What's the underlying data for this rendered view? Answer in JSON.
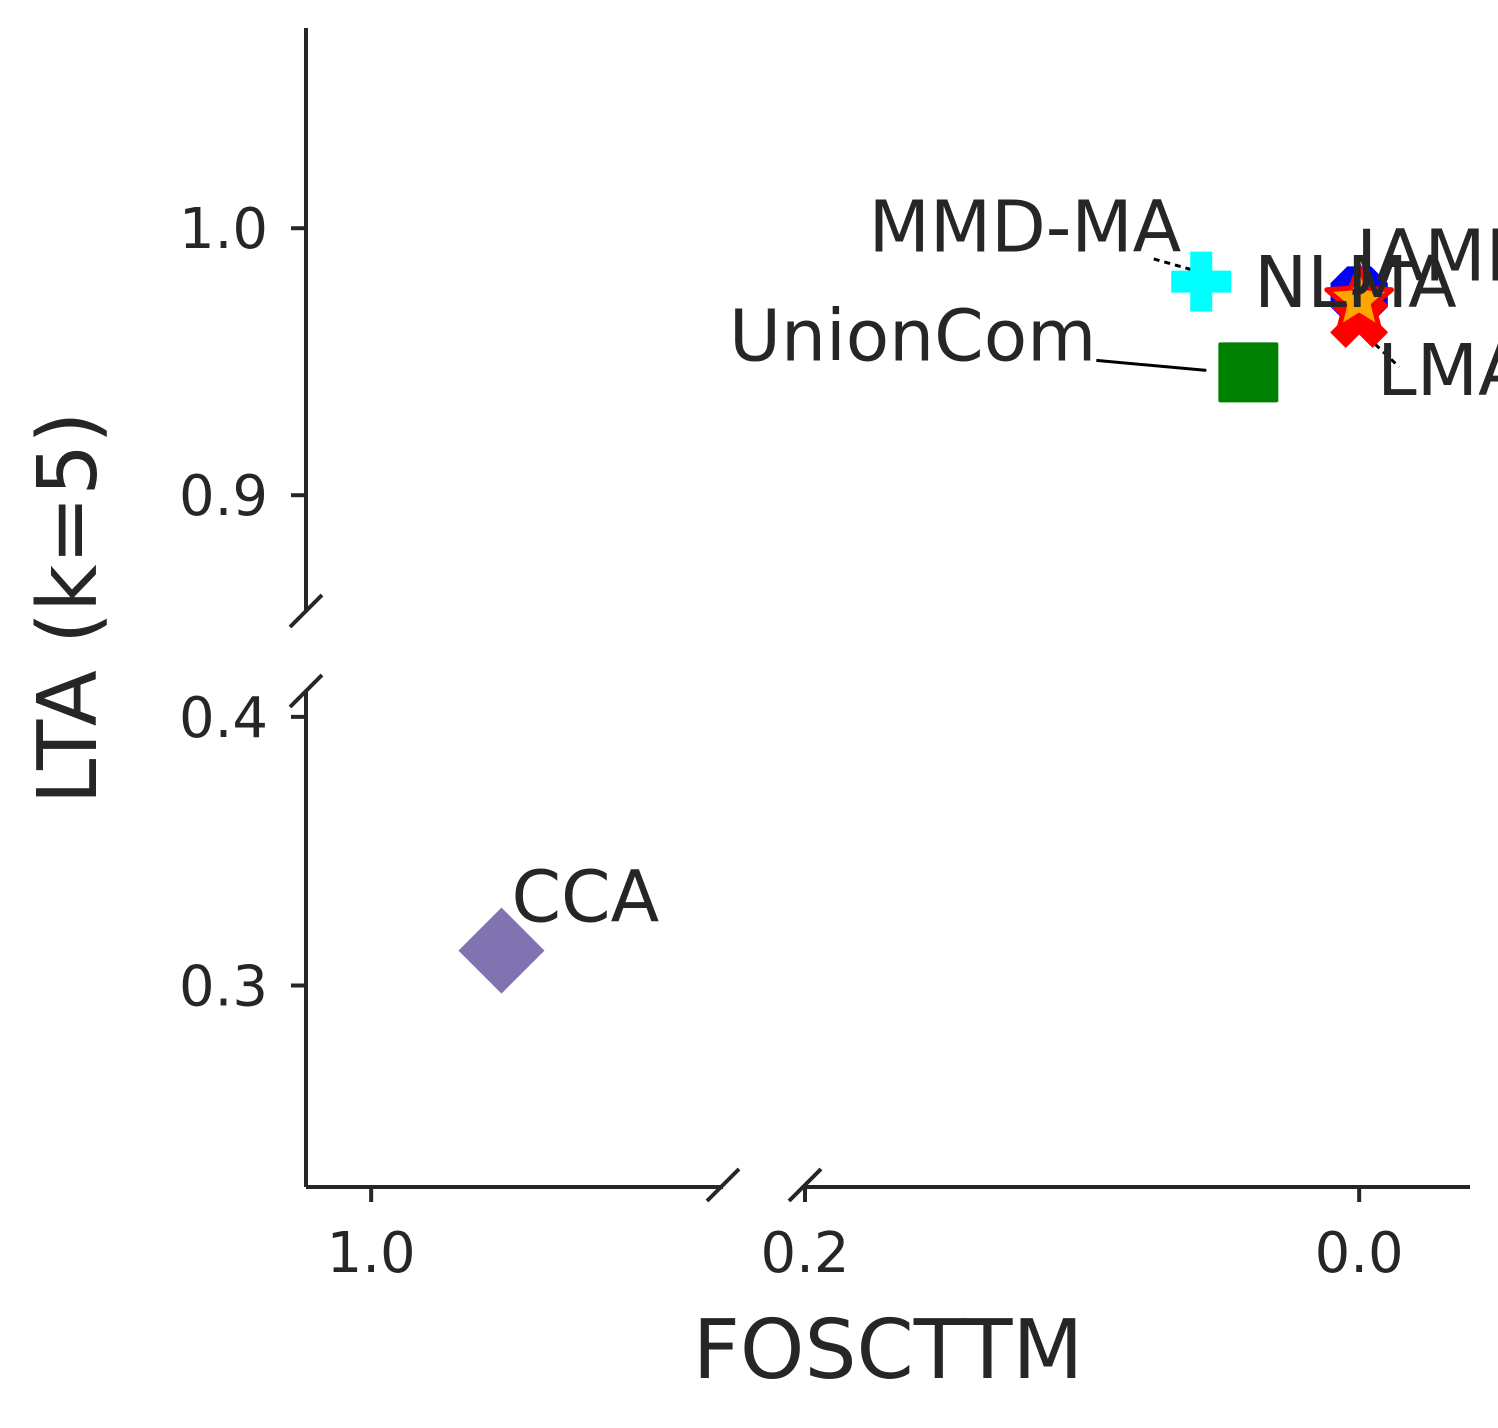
{
  "chart_data": {
    "type": "scatter",
    "xlabel": "FOSCTTM",
    "ylabel": "LTA (k=5)",
    "x_axis": {
      "inverted": true,
      "broken": true,
      "segments": [
        {
          "range": [
            1.05,
            0.73
          ],
          "ticks": [
            {
              "value": 1.0,
              "label": "1.0"
            }
          ]
        },
        {
          "range": [
            0.2,
            -0.04
          ],
          "ticks": [
            {
              "value": 0.2,
              "label": "0.2"
            },
            {
              "value": 0.0,
              "label": "0.0"
            }
          ]
        }
      ]
    },
    "y_axis": {
      "broken": true,
      "segments": [
        {
          "range": [
            0.225,
            0.41
          ],
          "ticks": [
            {
              "value": 0.3,
              "label": "0.3"
            },
            {
              "value": 0.4,
              "label": "0.4"
            }
          ]
        },
        {
          "range": [
            0.857,
            1.075
          ],
          "ticks": [
            {
              "value": 0.9,
              "label": "0.9"
            },
            {
              "value": 1.0,
              "label": "1.0"
            }
          ]
        }
      ]
    },
    "grid": false,
    "legend": "none",
    "points": [
      {
        "label": "MMD-MA",
        "x": 0.057,
        "y": 0.98,
        "marker": "plus",
        "color": "#00ffff"
      },
      {
        "label": "UnionCom",
        "x": 0.04,
        "y": 0.946,
        "marker": "square",
        "color": "#008000"
      },
      {
        "label": "NLMA",
        "x": 0.0,
        "y": 0.975,
        "marker": "octagon",
        "color": "#0000ff"
      },
      {
        "label": "JAMIE",
        "x": 0.0,
        "y": 0.973,
        "marker": "star",
        "color": "#ffa500",
        "edge": "#ff0000"
      },
      {
        "label": "LMA",
        "x": 0.0,
        "y": 0.966,
        "marker": "x",
        "color": "#ff0000"
      },
      {
        "label": "CCA",
        "x": 0.9,
        "y": 0.313,
        "marker": "diamond",
        "color": "#8172b2"
      }
    ]
  }
}
